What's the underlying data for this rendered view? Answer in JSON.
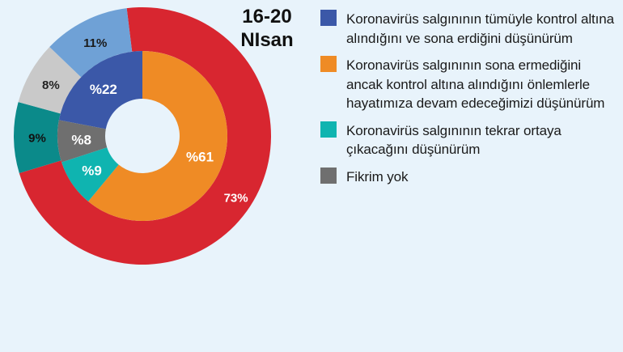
{
  "chart_data": {
    "type": "pie",
    "title": "16-20 NIsan",
    "title_lines": [
      "16-20",
      "NIsan"
    ],
    "outer_ring": [
      {
        "category": 0,
        "value": 0,
        "label": ""
      },
      {
        "category": 1,
        "value": 73,
        "label": "73%"
      },
      {
        "category": 2,
        "value": 9,
        "label": "9%"
      },
      {
        "category": 3,
        "value": 8,
        "label": "8%"
      },
      {
        "category": 4,
        "value": 11,
        "label": "11%"
      }
    ],
    "inner_ring": [
      {
        "category": 0,
        "value": 22,
        "label": "%22"
      },
      {
        "category": 1,
        "value": 61,
        "label": "%61"
      },
      {
        "category": 2,
        "value": 9,
        "label": "%9"
      },
      {
        "category": 3,
        "value": 8,
        "label": "%8"
      }
    ],
    "legend": [
      {
        "label": "Koronavirüs salgınının tümüyle kontrol altına alındığını ve sona erdiğini düşünürüm",
        "color": "#3b58a8"
      },
      {
        "label": "Koronavirüs salgınının sona ermediğini ancak kontrol altına alındığını önlemlerle hayatımıza devam edeceğimizi düşünürüm",
        "color": "#ef8b25"
      },
      {
        "label": "Koronavirüs salgınının tekrar ortaya çıkacağını düşünürüm",
        "color": "#0fb4b0"
      },
      {
        "label": "Fikrim yok",
        "color": "#6f6f6f"
      }
    ],
    "legend_placement": "right",
    "outer_colors": [
      "#3b58a8",
      "#d82630",
      "#0b8a8a",
      "#c9c9c9",
      "#6fa1d6"
    ],
    "inner_colors": [
      "#3b58a8",
      "#ef8b25",
      "#0fb4b0",
      "#6f6f6f"
    ]
  }
}
